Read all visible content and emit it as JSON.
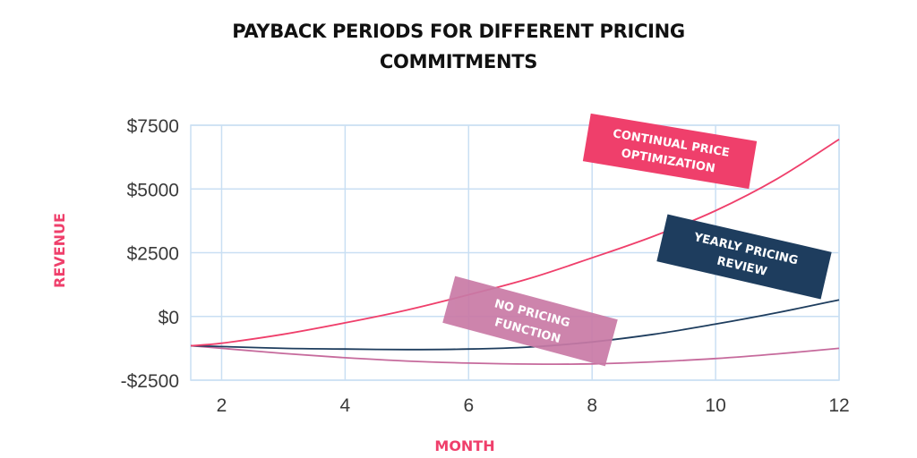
{
  "chart_data": {
    "type": "line",
    "title_lines": [
      "PAYBACK PERIODS FOR DIFFERENT PRICING",
      "COMMITMENTS"
    ],
    "xlabel": "MONTH",
    "ylabel": "REVENUE",
    "x_ticks": [
      2,
      4,
      6,
      8,
      10,
      12
    ],
    "x_tick_labels": [
      "2",
      "4",
      "6",
      "8",
      "10",
      "12"
    ],
    "y_ticks": [
      -2500,
      0,
      2500,
      5000,
      7500
    ],
    "y_tick_labels": [
      "-$2500",
      "$0",
      "$2500",
      "$5000",
      "$7500"
    ],
    "xlim": [
      1.5,
      12
    ],
    "ylim": [
      -2500,
      7500
    ],
    "grid": true,
    "colors": {
      "grid": "#c9dff3",
      "axis_label": "#ef3f6b",
      "title": "#111111",
      "tick": "#3a3a3a"
    },
    "series": [
      {
        "name": "CONTINUAL PRICE OPTIMIZATION",
        "label_lines": [
          "CONTINUAL PRICE",
          "OPTIMIZATION"
        ],
        "color": "#ef3f6b",
        "badge_color": "#ef3f6b",
        "x": [
          1.5,
          2,
          3,
          4,
          5,
          6,
          7,
          8,
          9,
          10,
          11,
          12
        ],
        "y": [
          -1150,
          -1050,
          -700,
          -250,
          250,
          850,
          1500,
          2300,
          3150,
          4150,
          5400,
          6950
        ]
      },
      {
        "name": "YEARLY PRICING REVIEW",
        "label_lines": [
          "YEARLY PRICING",
          "REVIEW"
        ],
        "color": "#1e3d5e",
        "badge_color": "#1e3d5e",
        "x": [
          1.5,
          2,
          3,
          4,
          5,
          6,
          7,
          8,
          9,
          10,
          11,
          12
        ],
        "y": [
          -1150,
          -1180,
          -1250,
          -1280,
          -1300,
          -1280,
          -1200,
          -1000,
          -700,
          -300,
          150,
          650
        ]
      },
      {
        "name": "NO PRICING FUNCTION",
        "label_lines": [
          "NO PRICING",
          "FUNCTION"
        ],
        "color": "#c66a9c",
        "badge_color": "#c97aa6",
        "x": [
          1.5,
          2,
          3,
          4,
          5,
          6,
          7,
          8,
          9,
          10,
          11,
          12
        ],
        "y": [
          -1150,
          -1250,
          -1450,
          -1620,
          -1750,
          -1830,
          -1870,
          -1860,
          -1780,
          -1650,
          -1470,
          -1250
        ]
      }
    ]
  }
}
